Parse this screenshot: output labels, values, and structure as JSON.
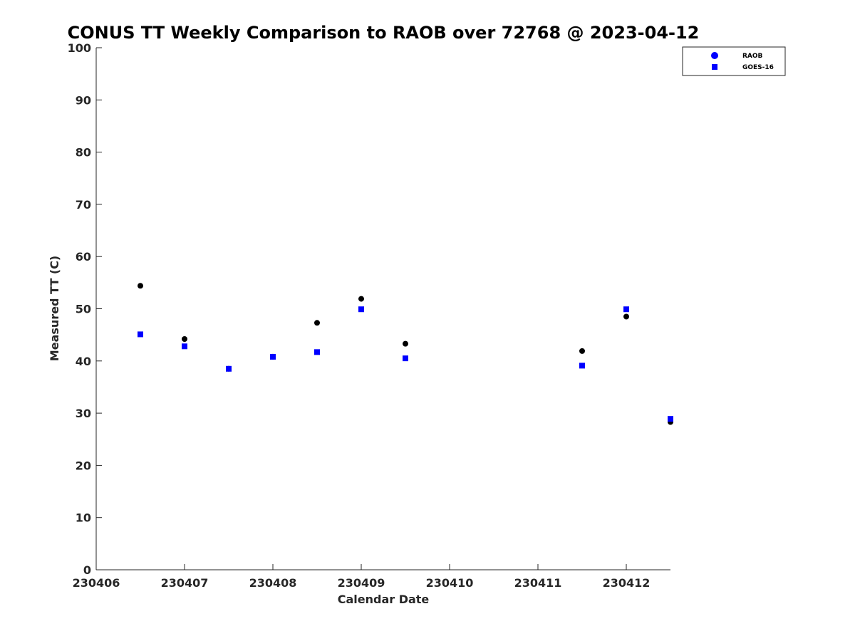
{
  "chart_data": {
    "type": "scatter",
    "title": "CONUS TT Weekly Comparison to RAOB over 72768 @ 2023-04-12",
    "xlabel": "Calendar Date",
    "ylabel": "Measured TT (C)",
    "xlim": [
      "230406",
      "230412.5"
    ],
    "ylim": [
      0,
      100
    ],
    "x_ticks": [
      "230406",
      "230407",
      "230408",
      "230409",
      "230410",
      "230411",
      "230412"
    ],
    "y_ticks": [
      0,
      10,
      20,
      30,
      40,
      50,
      60,
      70,
      80,
      90,
      100
    ],
    "grid": false,
    "legend_position": "top-right",
    "series": [
      {
        "name": "RAOB",
        "marker": "circle",
        "color": "#000000",
        "legend_color": "#0000ff",
        "points": [
          {
            "x": "2023-04-06 12Z",
            "y": 54.4
          },
          {
            "x": "2023-04-07 00Z",
            "y": 44.2
          },
          {
            "x": "2023-04-07 12Z",
            "y": 38.5
          },
          {
            "x": "2023-04-08 00Z",
            "y": 40.8
          },
          {
            "x": "2023-04-08 12Z",
            "y": 47.3
          },
          {
            "x": "2023-04-09 00Z",
            "y": 51.9
          },
          {
            "x": "2023-04-09 12Z",
            "y": 43.3
          },
          {
            "x": "2023-04-11 12Z",
            "y": 41.9
          },
          {
            "x": "2023-04-12 00Z",
            "y": 48.5
          },
          {
            "x": "2023-04-12 12Z",
            "y": 28.3
          }
        ]
      },
      {
        "name": "GOES-16",
        "marker": "square",
        "color": "#0000ff",
        "legend_color": "#0000ff",
        "points": [
          {
            "x": "2023-04-06 12Z",
            "y": 45.1
          },
          {
            "x": "2023-04-07 00Z",
            "y": 42.8
          },
          {
            "x": "2023-04-07 12Z",
            "y": 38.5
          },
          {
            "x": "2023-04-08 00Z",
            "y": 40.8
          },
          {
            "x": "2023-04-08 12Z",
            "y": 41.7
          },
          {
            "x": "2023-04-09 00Z",
            "y": 49.9
          },
          {
            "x": "2023-04-09 12Z",
            "y": 40.5
          },
          {
            "x": "2023-04-11 12Z",
            "y": 39.1
          },
          {
            "x": "2023-04-12 00Z",
            "y": 49.9
          },
          {
            "x": "2023-04-12 12Z",
            "y": 28.9
          }
        ]
      }
    ]
  }
}
